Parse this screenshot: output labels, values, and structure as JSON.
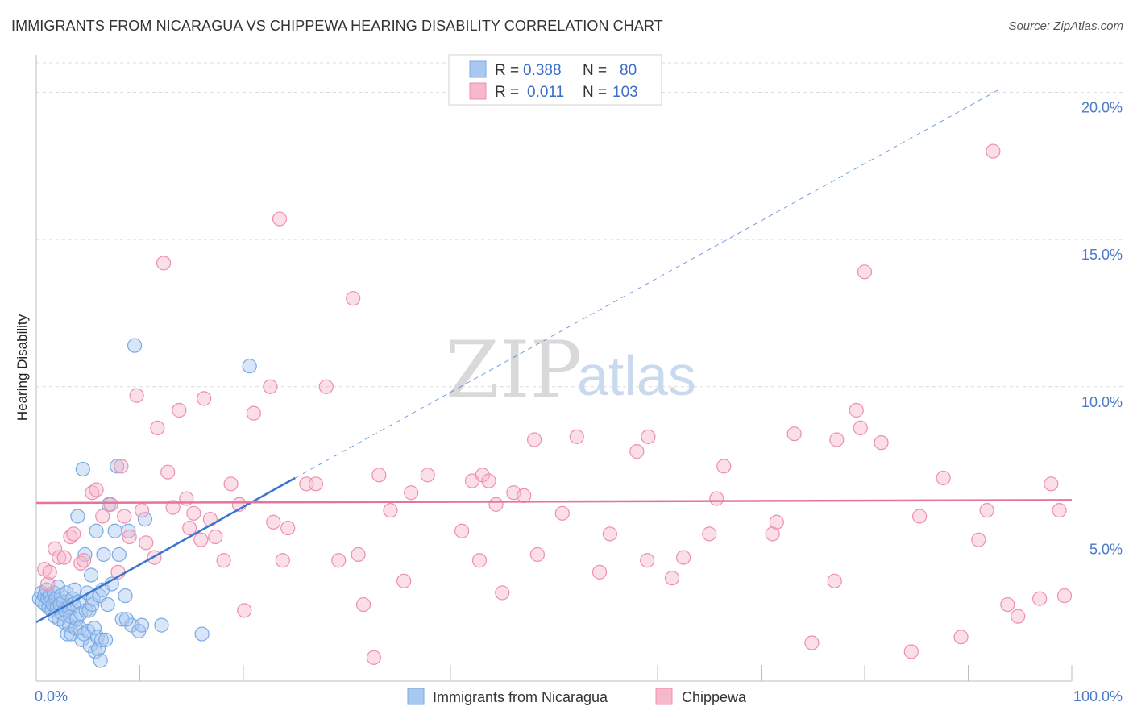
{
  "header": {
    "title": "IMMIGRANTS FROM NICARAGUA VS CHIPPEWA HEARING DISABILITY CORRELATION CHART",
    "source": "Source: ZipAtlas.com"
  },
  "watermark": {
    "zip": "ZIP",
    "atlas": "atlas"
  },
  "legend": {
    "rows": [
      {
        "r_label": "R =",
        "r_value": "0.388",
        "n_label": "N =",
        "n_value": "80",
        "color": "#a9c8f0"
      },
      {
        "r_label": "R =",
        "r_value": "0.011",
        "n_label": "N =",
        "n_value": "103",
        "color": "#f7b8cc"
      }
    ]
  },
  "bottom_legend": {
    "items": [
      {
        "label": "Immigrants from Nicaragua",
        "color": "#a9c8f0"
      },
      {
        "label": "Chippewa",
        "color": "#f7b8cc"
      }
    ]
  },
  "chart_data": {
    "type": "scatter",
    "ylabel": "Hearing Disability",
    "xlim": [
      0,
      100
    ],
    "ylim": [
      0,
      21
    ],
    "x_tick_labels": [
      "0.0%",
      "100.0%"
    ],
    "y_ticks": [
      {
        "value": 5,
        "label": "5.0%"
      },
      {
        "value": 10,
        "label": "10.0%"
      },
      {
        "value": 15,
        "label": "15.0%"
      },
      {
        "value": 20,
        "label": "20.0%"
      }
    ],
    "grid": "horizontal dashed",
    "series": [
      {
        "name": "Immigrants from Nicaragua",
        "color": "#7aaae6",
        "fill": "#a9c8f0",
        "trend": {
          "x0": 0,
          "y0": 2.0,
          "x1": 25,
          "y1": 6.9,
          "extend_to_x": 93,
          "extend_y": 20.1,
          "color": "#3b74d0"
        },
        "points": [
          [
            0.3,
            2.8
          ],
          [
            0.5,
            3.0
          ],
          [
            0.6,
            2.7
          ],
          [
            0.8,
            2.9
          ],
          [
            0.9,
            2.6
          ],
          [
            1.0,
            3.1
          ],
          [
            1.1,
            2.8
          ],
          [
            1.2,
            2.5
          ],
          [
            1.3,
            2.9
          ],
          [
            1.4,
            2.7
          ],
          [
            1.5,
            2.4
          ],
          [
            1.6,
            2.6
          ],
          [
            1.7,
            3.0
          ],
          [
            1.8,
            2.2
          ],
          [
            1.9,
            2.8
          ],
          [
            2.0,
            2.5
          ],
          [
            2.1,
            3.2
          ],
          [
            2.2,
            2.1
          ],
          [
            2.3,
            2.6
          ],
          [
            2.4,
            2.9
          ],
          [
            2.5,
            2.3
          ],
          [
            2.6,
            2.7
          ],
          [
            2.7,
            2.0
          ],
          [
            2.8,
            2.4
          ],
          [
            2.9,
            3.0
          ],
          [
            3.0,
            1.6
          ],
          [
            3.1,
            2.5
          ],
          [
            3.2,
            1.9
          ],
          [
            3.3,
            2.2
          ],
          [
            3.4,
            1.6
          ],
          [
            3.5,
            2.8
          ],
          [
            3.6,
            2.6
          ],
          [
            3.7,
            3.1
          ],
          [
            3.8,
            1.8
          ],
          [
            3.9,
            2.1
          ],
          [
            4.0,
            5.6
          ],
          [
            4.1,
            2.7
          ],
          [
            4.2,
            1.8
          ],
          [
            4.3,
            2.3
          ],
          [
            4.4,
            1.4
          ],
          [
            4.5,
            7.2
          ],
          [
            4.6,
            1.6
          ],
          [
            4.7,
            4.3
          ],
          [
            4.8,
            2.4
          ],
          [
            4.9,
            3.0
          ],
          [
            5.0,
            1.7
          ],
          [
            5.1,
            2.4
          ],
          [
            5.2,
            1.2
          ],
          [
            5.3,
            3.6
          ],
          [
            5.4,
            2.6
          ],
          [
            5.5,
            2.8
          ],
          [
            5.6,
            1.8
          ],
          [
            5.7,
            1.0
          ],
          [
            5.8,
            5.1
          ],
          [
            5.9,
            1.5
          ],
          [
            6.0,
            1.1
          ],
          [
            6.1,
            2.9
          ],
          [
            6.2,
            0.7
          ],
          [
            6.3,
            1.4
          ],
          [
            6.4,
            3.1
          ],
          [
            6.5,
            4.3
          ],
          [
            6.7,
            1.4
          ],
          [
            6.9,
            2.6
          ],
          [
            7.0,
            6.0
          ],
          [
            7.3,
            3.3
          ],
          [
            7.6,
            5.1
          ],
          [
            7.8,
            7.3
          ],
          [
            8.0,
            4.3
          ],
          [
            8.3,
            2.1
          ],
          [
            8.6,
            2.9
          ],
          [
            8.9,
            5.1
          ],
          [
            9.2,
            1.9
          ],
          [
            9.5,
            11.4
          ],
          [
            9.9,
            1.7
          ],
          [
            10.2,
            1.9
          ],
          [
            10.5,
            5.5
          ],
          [
            12.1,
            1.9
          ],
          [
            16.0,
            1.6
          ],
          [
            20.6,
            10.7
          ],
          [
            8.7,
            2.1
          ]
        ]
      },
      {
        "name": "Chippewa",
        "color": "#ee8fae",
        "fill": "#f7b8cc",
        "trend": {
          "x0": 0,
          "y0": 6.05,
          "x1": 100,
          "y1": 6.15,
          "color": "#e8739a"
        },
        "points": [
          [
            0.8,
            3.8
          ],
          [
            1.1,
            3.3
          ],
          [
            1.3,
            3.7
          ],
          [
            1.8,
            4.5
          ],
          [
            2.2,
            4.2
          ],
          [
            2.7,
            4.2
          ],
          [
            3.3,
            4.9
          ],
          [
            3.6,
            5.0
          ],
          [
            4.3,
            4.0
          ],
          [
            4.6,
            4.1
          ],
          [
            5.4,
            6.4
          ],
          [
            5.8,
            6.5
          ],
          [
            6.4,
            5.6
          ],
          [
            7.2,
            6.0
          ],
          [
            7.9,
            3.7
          ],
          [
            8.2,
            7.3
          ],
          [
            8.5,
            5.6
          ],
          [
            9.0,
            4.9
          ],
          [
            9.7,
            9.7
          ],
          [
            10.2,
            5.8
          ],
          [
            10.6,
            4.7
          ],
          [
            11.4,
            4.2
          ],
          [
            11.7,
            8.6
          ],
          [
            12.3,
            14.2
          ],
          [
            12.7,
            7.1
          ],
          [
            13.2,
            5.9
          ],
          [
            13.8,
            9.2
          ],
          [
            14.5,
            6.2
          ],
          [
            14.8,
            5.2
          ],
          [
            15.2,
            5.7
          ],
          [
            15.9,
            4.8
          ],
          [
            16.2,
            9.6
          ],
          [
            16.8,
            5.5
          ],
          [
            17.3,
            4.9
          ],
          [
            18.1,
            4.1
          ],
          [
            18.8,
            6.7
          ],
          [
            19.6,
            6.0
          ],
          [
            20.1,
            2.4
          ],
          [
            21.0,
            9.1
          ],
          [
            22.6,
            10.0
          ],
          [
            22.9,
            5.4
          ],
          [
            23.5,
            15.7
          ],
          [
            23.8,
            4.1
          ],
          [
            24.3,
            5.2
          ],
          [
            26.1,
            6.7
          ],
          [
            27.0,
            6.7
          ],
          [
            28.0,
            10.0
          ],
          [
            29.2,
            4.1
          ],
          [
            30.6,
            13.0
          ],
          [
            31.1,
            4.3
          ],
          [
            31.6,
            2.6
          ],
          [
            32.6,
            0.8
          ],
          [
            33.1,
            7.0
          ],
          [
            34.2,
            5.8
          ],
          [
            35.5,
            3.4
          ],
          [
            37.8,
            7.0
          ],
          [
            41.1,
            5.1
          ],
          [
            42.1,
            6.8
          ],
          [
            42.8,
            4.1
          ],
          [
            43.1,
            7.0
          ],
          [
            43.7,
            6.8
          ],
          [
            44.4,
            6.0
          ],
          [
            45.0,
            3.0
          ],
          [
            46.1,
            6.4
          ],
          [
            47.1,
            6.3
          ],
          [
            48.1,
            8.2
          ],
          [
            48.4,
            4.3
          ],
          [
            50.8,
            5.7
          ],
          [
            52.2,
            8.3
          ],
          [
            54.4,
            3.7
          ],
          [
            55.4,
            5.0
          ],
          [
            58.0,
            7.8
          ],
          [
            59.1,
            8.3
          ],
          [
            61.4,
            3.5
          ],
          [
            62.5,
            4.2
          ],
          [
            65.0,
            5.0
          ],
          [
            65.7,
            6.2
          ],
          [
            66.4,
            7.3
          ],
          [
            71.1,
            5.0
          ],
          [
            71.5,
            5.4
          ],
          [
            73.2,
            8.4
          ],
          [
            74.9,
            1.3
          ],
          [
            77.1,
            3.4
          ],
          [
            77.3,
            8.2
          ],
          [
            79.2,
            9.2
          ],
          [
            79.6,
            8.6
          ],
          [
            80.0,
            13.9
          ],
          [
            81.6,
            8.1
          ],
          [
            84.5,
            1.0
          ],
          [
            85.3,
            5.6
          ],
          [
            87.6,
            6.9
          ],
          [
            89.3,
            1.5
          ],
          [
            91.0,
            4.8
          ],
          [
            91.8,
            5.8
          ],
          [
            92.4,
            18.0
          ],
          [
            93.8,
            2.6
          ],
          [
            94.8,
            2.2
          ],
          [
            96.9,
            2.8
          ],
          [
            98.0,
            6.7
          ],
          [
            98.8,
            5.8
          ],
          [
            99.3,
            2.9
          ],
          [
            59.0,
            4.1
          ],
          [
            36.2,
            6.4
          ]
        ]
      }
    ]
  }
}
